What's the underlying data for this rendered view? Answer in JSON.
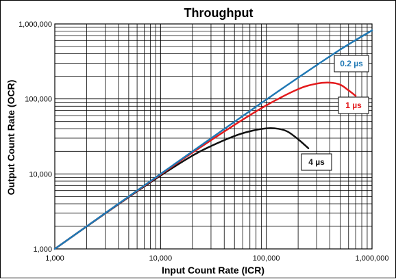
{
  "chart_data": {
    "type": "line",
    "title": "Throughput",
    "xlabel": "Input Count Rate (ICR)",
    "ylabel": "Output Count Rate (OCR)",
    "xscale": "log",
    "yscale": "log",
    "xlim": [
      1000,
      1000000
    ],
    "ylim": [
      1000,
      1000000
    ],
    "grid": true,
    "x_tick_labels": [
      "1,000",
      "10,000",
      "100,000",
      "1,000,000"
    ],
    "y_tick_labels": [
      "1,000",
      "10,000",
      "100,000",
      "1,000,000"
    ],
    "series": [
      {
        "name": "0.2 µs",
        "color": "#1f78b4",
        "x": [
          1000,
          2000,
          5000,
          10000,
          20000,
          50000,
          100000,
          200000,
          500000,
          1000000
        ],
        "y": [
          1000,
          2000,
          5000,
          9980,
          19900,
          49500,
          98000,
          192000,
          455000,
          820000
        ]
      },
      {
        "name": "1 µs",
        "color": "#e31a1c",
        "x": [
          1000,
          2000,
          5000,
          10000,
          20000,
          50000,
          100000,
          200000,
          300000,
          400000,
          500000,
          600000,
          700000
        ],
        "y": [
          1000,
          2000,
          4950,
          9800,
          19200,
          45000,
          82000,
          135000,
          160000,
          165000,
          155000,
          130000,
          110000
        ]
      },
      {
        "name": "4 µs",
        "color": "#111111",
        "x": [
          1000,
          2000,
          5000,
          10000,
          20000,
          30000,
          50000,
          70000,
          100000,
          130000,
          160000,
          200000,
          250000
        ],
        "y": [
          1000,
          1990,
          4900,
          9500,
          17500,
          23500,
          32000,
          37000,
          40500,
          40000,
          36500,
          29000,
          22000
        ]
      }
    ],
    "legend_labels": [
      "0.2 µs",
      "1 µs",
      "4 µs"
    ]
  }
}
